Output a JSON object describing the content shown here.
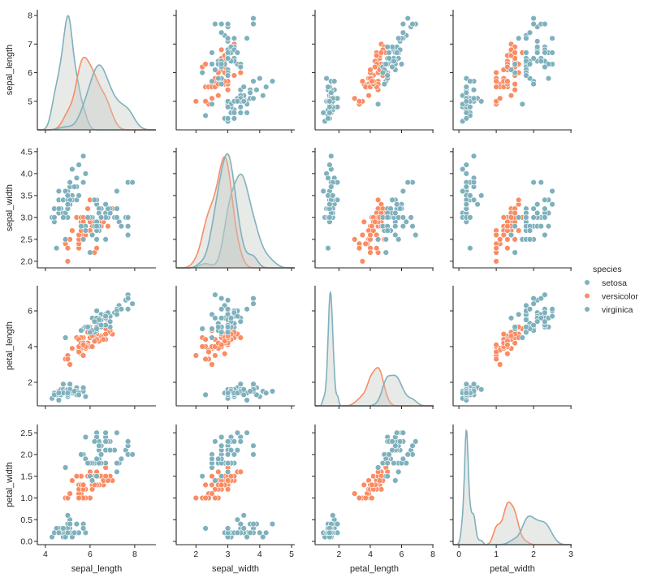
{
  "chart_data": {
    "type": "scatter",
    "kind": "pairplot",
    "diagonal": "kde",
    "variables": [
      "sepal_length",
      "sepal_width",
      "petal_length",
      "petal_width"
    ],
    "hue": "species",
    "legend": {
      "title": "species",
      "position": "right",
      "entries": [
        "setosa",
        "versicolor",
        "virginica"
      ]
    },
    "colors": {
      "setosa": "#7fb1bd",
      "versicolor": "#fa8c64",
      "virginica": "#7fb1bd"
    },
    "axes": [
      {
        "name": "sepal_length",
        "xlim": [
          3.64,
          8.95
        ],
        "ylim": [
          4.0,
          8.2
        ],
        "xticks": [
          "4",
          "6",
          "8"
        ],
        "yticks": [
          "5",
          "6",
          "7",
          "8"
        ]
      },
      {
        "name": "sepal_width",
        "xlim": [
          1.38,
          5.1
        ],
        "ylim": [
          1.85,
          4.59
        ],
        "xticks": [
          "2",
          "3",
          "4",
          "5"
        ],
        "yticks": [
          "2.0",
          "2.5",
          "3.0",
          "3.5",
          "4.0",
          "4.5"
        ]
      },
      {
        "name": "petal_length",
        "xlim": [
          0.47,
          8.05
        ],
        "ylim": [
          0.68,
          7.41
        ],
        "xticks": [
          "2",
          "4",
          "6",
          "8"
        ],
        "yticks": [
          "2",
          "4",
          "6"
        ]
      },
      {
        "name": "petal_width",
        "xlim": [
          -0.155,
          3.02
        ],
        "ylim": [
          -0.075,
          2.69
        ],
        "xticks": [
          "0",
          "1",
          "2",
          "3"
        ],
        "yticks": [
          "0.0",
          "0.5",
          "1.0",
          "1.5",
          "2.0",
          "2.5"
        ]
      }
    ],
    "grid": false,
    "data": {
      "setosa": [
        [
          5.1,
          3.5,
          1.4,
          0.2
        ],
        [
          4.9,
          3.0,
          1.4,
          0.2
        ],
        [
          4.7,
          3.2,
          1.3,
          0.2
        ],
        [
          4.6,
          3.1,
          1.5,
          0.2
        ],
        [
          5.0,
          3.6,
          1.4,
          0.2
        ],
        [
          5.4,
          3.9,
          1.7,
          0.4
        ],
        [
          4.6,
          3.4,
          1.4,
          0.3
        ],
        [
          5.0,
          3.4,
          1.5,
          0.2
        ],
        [
          4.4,
          2.9,
          1.4,
          0.2
        ],
        [
          4.9,
          3.1,
          1.5,
          0.1
        ],
        [
          5.4,
          3.7,
          1.5,
          0.2
        ],
        [
          4.8,
          3.4,
          1.6,
          0.2
        ],
        [
          4.8,
          3.0,
          1.4,
          0.1
        ],
        [
          4.3,
          3.0,
          1.1,
          0.1
        ],
        [
          5.8,
          4.0,
          1.2,
          0.2
        ],
        [
          5.7,
          4.4,
          1.5,
          0.4
        ],
        [
          5.4,
          3.9,
          1.3,
          0.4
        ],
        [
          5.1,
          3.5,
          1.4,
          0.3
        ],
        [
          5.7,
          3.8,
          1.7,
          0.3
        ],
        [
          5.1,
          3.8,
          1.5,
          0.3
        ],
        [
          5.4,
          3.4,
          1.7,
          0.2
        ],
        [
          5.1,
          3.7,
          1.5,
          0.4
        ],
        [
          4.6,
          3.6,
          1.0,
          0.2
        ],
        [
          5.1,
          3.3,
          1.7,
          0.5
        ],
        [
          4.8,
          3.4,
          1.9,
          0.2
        ],
        [
          5.0,
          3.0,
          1.6,
          0.2
        ],
        [
          5.0,
          3.4,
          1.6,
          0.4
        ],
        [
          5.2,
          3.5,
          1.5,
          0.2
        ],
        [
          5.2,
          3.4,
          1.4,
          0.2
        ],
        [
          4.7,
          3.2,
          1.6,
          0.2
        ],
        [
          4.8,
          3.1,
          1.6,
          0.2
        ],
        [
          5.4,
          3.4,
          1.5,
          0.4
        ],
        [
          5.2,
          4.1,
          1.5,
          0.1
        ],
        [
          5.5,
          4.2,
          1.4,
          0.2
        ],
        [
          4.9,
          3.1,
          1.5,
          0.2
        ],
        [
          5.0,
          3.2,
          1.2,
          0.2
        ],
        [
          5.5,
          3.5,
          1.3,
          0.2
        ],
        [
          4.9,
          3.6,
          1.4,
          0.1
        ],
        [
          4.4,
          3.0,
          1.3,
          0.2
        ],
        [
          5.1,
          3.4,
          1.5,
          0.2
        ],
        [
          5.0,
          3.5,
          1.3,
          0.3
        ],
        [
          4.5,
          2.3,
          1.3,
          0.3
        ],
        [
          4.4,
          3.2,
          1.3,
          0.2
        ],
        [
          5.0,
          3.5,
          1.6,
          0.6
        ],
        [
          5.1,
          3.8,
          1.9,
          0.4
        ],
        [
          4.8,
          3.0,
          1.4,
          0.3
        ],
        [
          5.1,
          3.8,
          1.6,
          0.2
        ],
        [
          4.6,
          3.2,
          1.4,
          0.2
        ],
        [
          5.3,
          3.7,
          1.5,
          0.2
        ],
        [
          5.0,
          3.3,
          1.4,
          0.2
        ]
      ],
      "versicolor": [
        [
          7.0,
          3.2,
          4.7,
          1.4
        ],
        [
          6.4,
          3.2,
          4.5,
          1.5
        ],
        [
          6.9,
          3.1,
          4.9,
          1.5
        ],
        [
          5.5,
          2.3,
          4.0,
          1.3
        ],
        [
          6.5,
          2.8,
          4.6,
          1.5
        ],
        [
          5.7,
          2.8,
          4.5,
          1.3
        ],
        [
          6.3,
          3.3,
          4.7,
          1.6
        ],
        [
          4.9,
          2.4,
          3.3,
          1.0
        ],
        [
          6.6,
          2.9,
          4.6,
          1.3
        ],
        [
          5.2,
          2.7,
          3.9,
          1.4
        ],
        [
          5.0,
          2.0,
          3.5,
          1.0
        ],
        [
          5.9,
          3.0,
          4.2,
          1.5
        ],
        [
          6.0,
          2.2,
          4.0,
          1.0
        ],
        [
          6.1,
          2.9,
          4.7,
          1.4
        ],
        [
          5.6,
          2.9,
          3.6,
          1.3
        ],
        [
          6.7,
          3.1,
          4.4,
          1.4
        ],
        [
          5.6,
          3.0,
          4.5,
          1.5
        ],
        [
          5.8,
          2.7,
          4.1,
          1.0
        ],
        [
          6.2,
          2.2,
          4.5,
          1.5
        ],
        [
          5.6,
          2.5,
          3.9,
          1.1
        ],
        [
          5.9,
          3.2,
          4.8,
          1.8
        ],
        [
          6.1,
          2.8,
          4.0,
          1.3
        ],
        [
          6.3,
          2.5,
          4.9,
          1.5
        ],
        [
          6.1,
          2.8,
          4.7,
          1.2
        ],
        [
          6.4,
          2.9,
          4.3,
          1.3
        ],
        [
          6.6,
          3.0,
          4.4,
          1.4
        ],
        [
          6.8,
          2.8,
          4.8,
          1.4
        ],
        [
          6.7,
          3.0,
          5.0,
          1.7
        ],
        [
          6.0,
          2.9,
          4.5,
          1.5
        ],
        [
          5.7,
          2.6,
          3.5,
          1.0
        ],
        [
          5.5,
          2.4,
          3.8,
          1.1
        ],
        [
          5.5,
          2.4,
          3.7,
          1.0
        ],
        [
          5.8,
          2.7,
          3.9,
          1.2
        ],
        [
          6.0,
          2.7,
          5.1,
          1.6
        ],
        [
          5.4,
          3.0,
          4.5,
          1.5
        ],
        [
          6.0,
          3.4,
          4.5,
          1.6
        ],
        [
          6.7,
          3.1,
          4.7,
          1.5
        ],
        [
          6.3,
          2.3,
          4.4,
          1.3
        ],
        [
          5.6,
          3.0,
          4.1,
          1.3
        ],
        [
          5.5,
          2.5,
          4.0,
          1.3
        ],
        [
          5.5,
          2.6,
          4.4,
          1.2
        ],
        [
          6.1,
          3.0,
          4.6,
          1.4
        ],
        [
          5.8,
          2.6,
          4.0,
          1.2
        ],
        [
          5.0,
          2.3,
          3.3,
          1.0
        ],
        [
          5.6,
          2.7,
          4.2,
          1.3
        ],
        [
          5.7,
          3.0,
          4.2,
          1.2
        ],
        [
          5.7,
          2.9,
          4.2,
          1.3
        ],
        [
          6.2,
          2.9,
          4.3,
          1.3
        ],
        [
          5.1,
          2.5,
          3.0,
          1.1
        ],
        [
          5.7,
          2.8,
          4.1,
          1.3
        ]
      ],
      "virginica": [
        [
          6.3,
          3.3,
          6.0,
          2.5
        ],
        [
          5.8,
          2.7,
          5.1,
          1.9
        ],
        [
          7.1,
          3.0,
          5.9,
          2.1
        ],
        [
          6.3,
          2.9,
          5.6,
          1.8
        ],
        [
          6.5,
          3.0,
          5.8,
          2.2
        ],
        [
          7.6,
          3.0,
          6.6,
          2.1
        ],
        [
          4.9,
          2.5,
          4.5,
          1.7
        ],
        [
          7.3,
          2.9,
          6.3,
          1.8
        ],
        [
          6.7,
          2.5,
          5.8,
          1.8
        ],
        [
          7.2,
          3.6,
          6.1,
          2.5
        ],
        [
          6.5,
          3.2,
          5.1,
          2.0
        ],
        [
          6.4,
          2.7,
          5.3,
          1.9
        ],
        [
          6.8,
          3.0,
          5.5,
          2.1
        ],
        [
          5.7,
          2.5,
          5.0,
          2.0
        ],
        [
          5.8,
          2.8,
          5.1,
          2.4
        ],
        [
          6.4,
          3.2,
          5.3,
          2.3
        ],
        [
          6.5,
          3.0,
          5.5,
          1.8
        ],
        [
          7.7,
          3.8,
          6.7,
          2.2
        ],
        [
          7.7,
          2.6,
          6.9,
          2.3
        ],
        [
          6.0,
          2.2,
          5.0,
          1.5
        ],
        [
          6.9,
          3.2,
          5.7,
          2.3
        ],
        [
          5.6,
          2.8,
          4.9,
          2.0
        ],
        [
          7.7,
          2.8,
          6.7,
          2.0
        ],
        [
          6.3,
          2.7,
          4.9,
          1.8
        ],
        [
          6.7,
          3.3,
          5.7,
          2.1
        ],
        [
          7.2,
          3.2,
          6.0,
          1.8
        ],
        [
          6.2,
          2.8,
          4.8,
          1.8
        ],
        [
          6.1,
          3.0,
          4.9,
          1.8
        ],
        [
          6.4,
          2.8,
          5.6,
          2.1
        ],
        [
          7.2,
          3.0,
          5.8,
          1.6
        ],
        [
          7.4,
          2.8,
          6.1,
          1.9
        ],
        [
          7.9,
          3.8,
          6.4,
          2.0
        ],
        [
          6.4,
          2.8,
          5.6,
          2.2
        ],
        [
          6.3,
          2.8,
          5.1,
          1.5
        ],
        [
          6.1,
          2.6,
          5.6,
          1.4
        ],
        [
          7.7,
          3.0,
          6.1,
          2.3
        ],
        [
          6.3,
          3.4,
          5.6,
          2.4
        ],
        [
          6.4,
          3.1,
          5.5,
          1.8
        ],
        [
          6.0,
          3.0,
          4.8,
          1.8
        ],
        [
          6.9,
          3.1,
          5.4,
          2.1
        ],
        [
          6.7,
          3.1,
          5.6,
          2.4
        ],
        [
          6.9,
          3.1,
          5.1,
          2.3
        ],
        [
          5.8,
          2.7,
          5.1,
          1.9
        ],
        [
          6.8,
          3.2,
          5.9,
          2.3
        ],
        [
          6.7,
          3.3,
          5.7,
          2.5
        ],
        [
          6.7,
          3.0,
          5.2,
          2.3
        ],
        [
          6.3,
          2.5,
          5.0,
          1.9
        ],
        [
          6.5,
          3.0,
          5.2,
          2.0
        ],
        [
          6.2,
          3.4,
          5.4,
          2.3
        ],
        [
          5.9,
          3.0,
          5.1,
          1.8
        ]
      ]
    }
  }
}
